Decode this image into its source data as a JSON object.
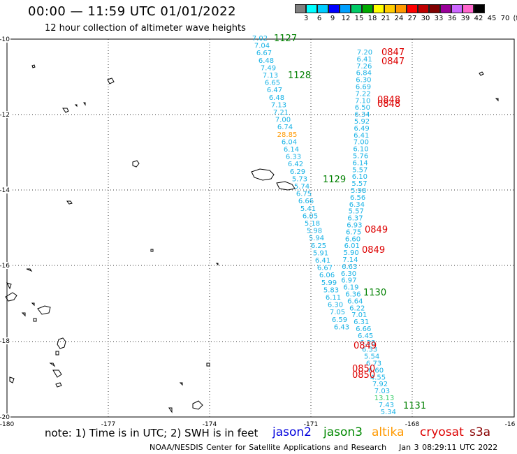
{
  "header": {
    "title": "00:00 — 11:59 UTC 01/01/2022",
    "subtitle": "12 hour collection of altimeter wave heights"
  },
  "color_scale": {
    "unit_label": "(ft)",
    "colors": [
      "#7f7f7f",
      "#00ffff",
      "#00ccff",
      "#0000ff",
      "#00a0ff",
      "#00cc66",
      "#00aa00",
      "#ffff00",
      "#ffcc00",
      "#ff9900",
      "#ff0000",
      "#c00000",
      "#800000",
      "#990099",
      "#cc66ff",
      "#ff66cc",
      "#000000"
    ],
    "labels": [
      "3",
      "6",
      "9",
      "12",
      "15",
      "18",
      "21",
      "24",
      "27",
      "30",
      "33",
      "36",
      "39",
      "42",
      "45",
      "70"
    ]
  },
  "axes": {
    "lat_labels": [
      "-10",
      "-12",
      "-14",
      "-16",
      "-18",
      "-20"
    ],
    "lon_labels": [
      "-180",
      "-177",
      "-174",
      "-171",
      "-168",
      "-16"
    ]
  },
  "passes": [
    {
      "label": "1127",
      "color": "#008000"
    },
    {
      "label": "1128",
      "color": "#008000"
    },
    {
      "label": "1129",
      "color": "#008000"
    },
    {
      "label": "1130",
      "color": "#008000"
    },
    {
      "label": "1131",
      "color": "#008000"
    },
    {
      "label": "0847",
      "color": "#dd0000"
    },
    {
      "label": "0847",
      "color": "#dd0000"
    },
    {
      "label": "0848",
      "color": "#dd0000"
    },
    {
      "label": "0848",
      "color": "#dd0000"
    },
    {
      "label": "0849",
      "color": "#dd0000"
    },
    {
      "label": "0849",
      "color": "#dd0000"
    },
    {
      "label": "0849",
      "color": "#dd0000"
    },
    {
      "label": "0850",
      "color": "#dd0000"
    },
    {
      "label": "0850",
      "color": "#dd0000"
    }
  ],
  "track_west": [
    "7.02",
    "7.04",
    "6.67",
    "6.48",
    "7.49",
    "7.13",
    "6.65",
    "6.47",
    "6.48",
    "7.13",
    "7.21",
    "7.00",
    "6.74",
    "28.85",
    "6.04",
    "6.14",
    "6.33",
    "6.42",
    "6.29",
    "5.73",
    "5.74",
    "6.75",
    "6.66",
    "5.41",
    "6.05",
    "5.18",
    "5.98",
    "5.94",
    "6.25",
    "5.91",
    "6.41",
    "6.67",
    "6.06",
    "5.99",
    "5.83",
    "6.11",
    "6.30",
    "7.05",
    "6.59",
    "6.43"
  ],
  "track_east": [
    "7.20",
    "6.41",
    "7.26",
    "6.84",
    "6.30",
    "6.69",
    "7.22",
    "7.10",
    "6.50",
    "6.34",
    "5.92",
    "6.49",
    "6.41",
    "7.00",
    "6.10",
    "5.76",
    "6.14",
    "5.57",
    "6.10",
    "5.57",
    "5.98",
    "6.56",
    "6.34",
    "5.57",
    "6.37",
    "6.93",
    "6.75",
    "6.60",
    "6.01",
    "5.90",
    "7.14",
    "6.63",
    "6.30",
    "6.97",
    "6.19",
    "6.36",
    "6.64",
    "6.22",
    "7.01",
    "6.31",
    "6.66",
    "6.45",
    "6.38",
    "6.33",
    "5.54",
    "6.73",
    "6.60",
    "4.55",
    "7.92",
    "7.03",
    "13.13",
    "7.43",
    "5.34"
  ],
  "note": "note:  1) Time is in UTC;  2) SWH is in feet",
  "legend": [
    {
      "label": "jason2",
      "color": "#0000dd"
    },
    {
      "label": "jason3",
      "color": "#008800"
    },
    {
      "label": "altika",
      "color": "#ff9900"
    },
    {
      "label": "cryosat",
      "color": "#dd0000"
    },
    {
      "label": "s3a",
      "color": "#880000"
    }
  ],
  "footer": {
    "credit": "NOAA/NESDIS Center for Satellite Applications and Research",
    "timestamp": "Jan  3 08:29:11 UTC 2022"
  }
}
